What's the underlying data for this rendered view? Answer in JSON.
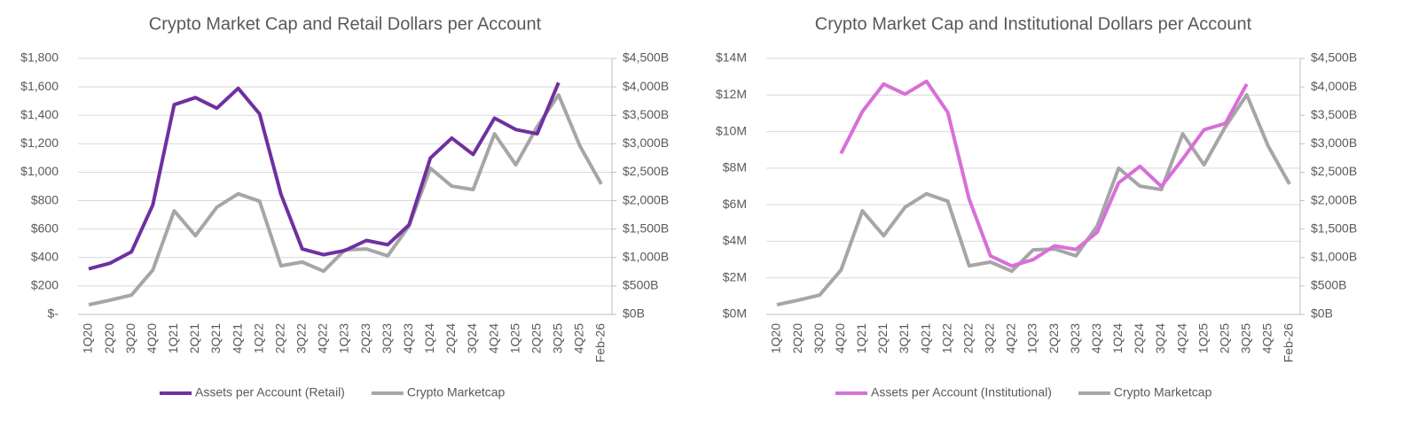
{
  "chart_data": [
    {
      "type": "line",
      "title": "Crypto Market Cap and Retail Dollars per Account",
      "categories": [
        "1Q20",
        "2Q20",
        "3Q20",
        "4Q20",
        "1Q21",
        "2Q21",
        "3Q21",
        "4Q21",
        "1Q22",
        "2Q22",
        "3Q22",
        "4Q22",
        "1Q23",
        "2Q23",
        "3Q23",
        "4Q23",
        "1Q24",
        "2Q24",
        "3Q24",
        "4Q24",
        "1Q25",
        "2Q25",
        "3Q25",
        "4Q25",
        "Feb-26"
      ],
      "series": [
        {
          "name": "Assets per Account (Retail)",
          "color": "#7030a0",
          "values": [
            320,
            360,
            440,
            770,
            1475,
            1525,
            1450,
            1590,
            1410,
            845,
            460,
            420,
            450,
            520,
            490,
            630,
            1100,
            1240,
            1125,
            1380,
            1300,
            1270,
            1630,
            null,
            null
          ]
        },
        {
          "name": "Crypto Marketcap",
          "color": "#a6a6a6",
          "axis": "y2",
          "values": [
            170,
            250,
            340,
            780,
            1820,
            1385,
            1885,
            2120,
            1990,
            855,
            920,
            760,
            1135,
            1150,
            1030,
            1555,
            2570,
            2255,
            2195,
            3175,
            2630,
            3300,
            3860,
            2960,
            2290
          ]
        }
      ],
      "ylim": [
        0,
        1800
      ],
      "yticks": [
        {
          "value": 0,
          "label": "$-"
        },
        {
          "value": 200,
          "label": "$200"
        },
        {
          "value": 400,
          "label": "$400"
        },
        {
          "value": 600,
          "label": "$600"
        },
        {
          "value": 800,
          "label": "$800"
        },
        {
          "value": 1000,
          "label": "$1,000"
        },
        {
          "value": 1200,
          "label": "$1,200"
        },
        {
          "value": 1400,
          "label": "$1,400"
        },
        {
          "value": 1600,
          "label": "$1,600"
        },
        {
          "value": 1800,
          "label": "$1,800"
        }
      ],
      "y2lim": [
        0,
        4500
      ],
      "y2ticks": [
        {
          "value": 0,
          "label": "$0B"
        },
        {
          "value": 500,
          "label": "$500B"
        },
        {
          "value": 1000,
          "label": "$1,000B"
        },
        {
          "value": 1500,
          "label": "$1,500B"
        },
        {
          "value": 2000,
          "label": "$2,000B"
        },
        {
          "value": 2500,
          "label": "$2,500B"
        },
        {
          "value": 3000,
          "label": "$3,000B"
        },
        {
          "value": 3500,
          "label": "$3,500B"
        },
        {
          "value": 4000,
          "label": "$4,000B"
        },
        {
          "value": 4500,
          "label": "$4,500B"
        }
      ],
      "grid": true,
      "legend": "bottom"
    },
    {
      "type": "line",
      "title": "Crypto Market Cap and Institutional Dollars per Account",
      "categories": [
        "1Q20",
        "2Q20",
        "3Q20",
        "4Q20",
        "1Q21",
        "2Q21",
        "3Q21",
        "4Q21",
        "1Q22",
        "2Q22",
        "3Q22",
        "4Q22",
        "1Q23",
        "2Q23",
        "3Q23",
        "4Q23",
        "1Q24",
        "2Q24",
        "3Q24",
        "4Q24",
        "1Q25",
        "2Q25",
        "3Q25",
        "4Q25",
        "Feb-26"
      ],
      "series": [
        {
          "name": "Assets per Account (Institutional)",
          "color": "#d86fd8",
          "values": [
            null,
            null,
            null,
            8800000,
            11100000,
            12600000,
            12050000,
            12750000,
            11050000,
            6300000,
            3200000,
            2650000,
            3000000,
            3750000,
            3550000,
            4500000,
            7200000,
            8100000,
            7000000,
            8500000,
            10100000,
            10450000,
            12600000,
            null,
            null
          ]
        },
        {
          "name": "Crypto Marketcap",
          "color": "#a6a6a6",
          "axis": "y2",
          "values": [
            170,
            250,
            340,
            780,
            1820,
            1385,
            1885,
            2120,
            1990,
            855,
            920,
            760,
            1135,
            1150,
            1030,
            1555,
            2570,
            2255,
            2195,
            3175,
            2630,
            3300,
            3860,
            2960,
            2290
          ]
        }
      ],
      "ylim": [
        0,
        14000000
      ],
      "yticks": [
        {
          "value": 0,
          "label": "$0M"
        },
        {
          "value": 2000000,
          "label": "$2M"
        },
        {
          "value": 4000000,
          "label": "$4M"
        },
        {
          "value": 6000000,
          "label": "$6M"
        },
        {
          "value": 8000000,
          "label": "$8M"
        },
        {
          "value": 10000000,
          "label": "$10M"
        },
        {
          "value": 12000000,
          "label": "$12M"
        },
        {
          "value": 14000000,
          "label": "$14M"
        }
      ],
      "y2lim": [
        0,
        4500
      ],
      "y2ticks": [
        {
          "value": 0,
          "label": "$0B"
        },
        {
          "value": 500,
          "label": "$500B"
        },
        {
          "value": 1000,
          "label": "$1,000B"
        },
        {
          "value": 1500,
          "label": "$1,500B"
        },
        {
          "value": 2000,
          "label": "$2,000B"
        },
        {
          "value": 2500,
          "label": "$2,500B"
        },
        {
          "value": 3000,
          "label": "$3,000B"
        },
        {
          "value": 3500,
          "label": "$3,500B"
        },
        {
          "value": 4000,
          "label": "$4,000B"
        },
        {
          "value": 4500,
          "label": "$4,500B"
        }
      ],
      "grid": true,
      "legend": "bottom"
    }
  ]
}
